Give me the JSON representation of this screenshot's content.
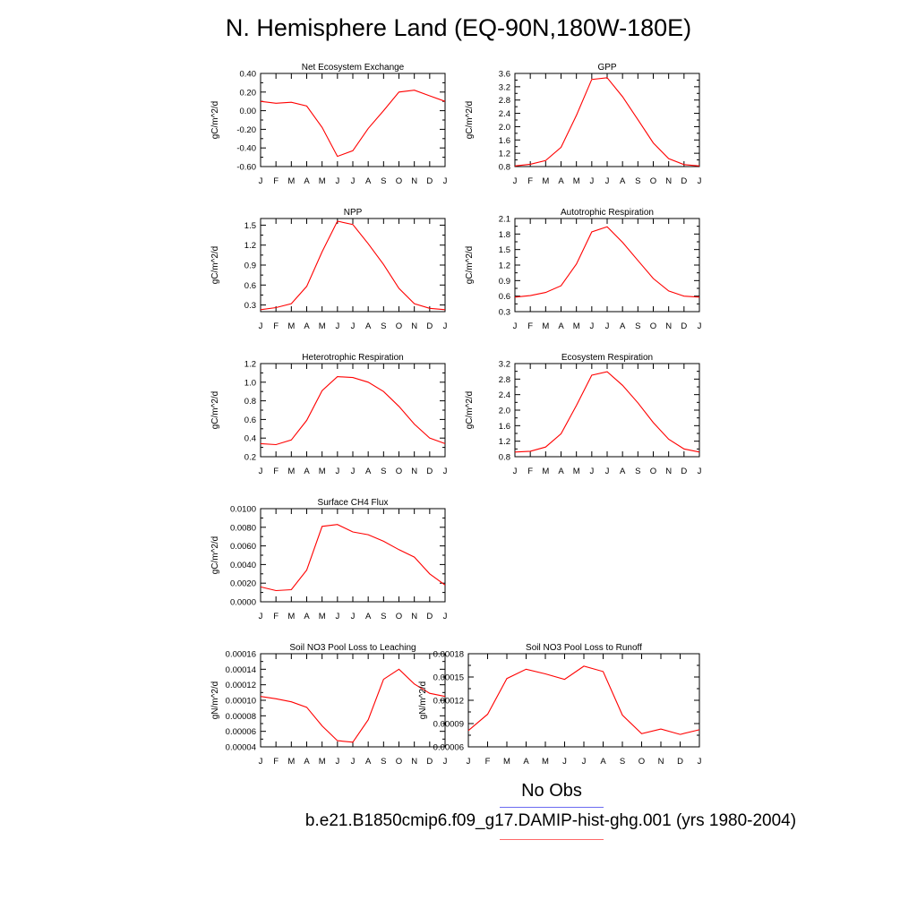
{
  "title": "N. Hemisphere Land (EQ-90N,180W-180E)",
  "legend": {
    "obs_label": "No Obs",
    "obs_color": "#6a6af0",
    "case_label": "b.e21.B1850cmip6.f09_g17.DAMIP-hist-ghg.001 (yrs 1980-2004)",
    "case_color": "#ff0000"
  },
  "chart_data": [
    {
      "type": "line",
      "title": "Net Ecosystem Exchange",
      "ylabel": "gC/m^2/d",
      "categories": [
        "J",
        "F",
        "M",
        "A",
        "M",
        "J",
        "J",
        "A",
        "S",
        "O",
        "N",
        "D",
        "J"
      ],
      "yticks": [
        "0.40",
        "0.20",
        "0.00",
        "-0.20",
        "-0.40",
        "-0.60"
      ],
      "ylim": [
        -0.6,
        0.4
      ],
      "series": [
        {
          "values": [
            0.1,
            0.08,
            0.09,
            0.05,
            -0.18,
            -0.49,
            -0.43,
            -0.19,
            0.0,
            0.2,
            0.22,
            0.16,
            0.1
          ]
        }
      ]
    },
    {
      "type": "line",
      "title": "GPP",
      "ylabel": "gC/m^2/d",
      "categories": [
        "J",
        "F",
        "M",
        "A",
        "M",
        "J",
        "J",
        "A",
        "S",
        "O",
        "N",
        "D",
        "J"
      ],
      "yticks": [
        "3.6",
        "3.2",
        "2.8",
        "2.4",
        "2.0",
        "1.6",
        "1.2",
        "0.8"
      ],
      "ylim": [
        0.8,
        3.6
      ],
      "series": [
        {
          "values": [
            0.82,
            0.87,
            0.98,
            1.38,
            2.34,
            3.42,
            3.47,
            2.9,
            2.21,
            1.51,
            1.04,
            0.86,
            0.82
          ]
        }
      ]
    },
    {
      "type": "line",
      "title": "NPP",
      "ylabel": "gC/m^2/d",
      "categories": [
        "J",
        "F",
        "M",
        "A",
        "M",
        "J",
        "J",
        "A",
        "S",
        "O",
        "N",
        "D",
        "J"
      ],
      "yticks": [
        "1.5",
        "1.2",
        "0.9",
        "0.6",
        "0.3"
      ],
      "ylim": [
        0.2,
        1.6
      ],
      "series": [
        {
          "values": [
            0.23,
            0.26,
            0.32,
            0.58,
            1.1,
            1.56,
            1.51,
            1.22,
            0.91,
            0.55,
            0.32,
            0.25,
            0.23
          ]
        }
      ]
    },
    {
      "type": "line",
      "title": "Autotrophic Respiration",
      "ylabel": "gC/m^2/d",
      "categories": [
        "J",
        "F",
        "M",
        "A",
        "M",
        "J",
        "J",
        "A",
        "S",
        "O",
        "N",
        "D",
        "J"
      ],
      "yticks": [
        "2.1",
        "1.8",
        "1.5",
        "1.2",
        "0.9",
        "0.6",
        "0.3"
      ],
      "ylim": [
        0.3,
        2.1
      ],
      "series": [
        {
          "values": [
            0.58,
            0.61,
            0.67,
            0.8,
            1.22,
            1.84,
            1.94,
            1.64,
            1.29,
            0.94,
            0.7,
            0.6,
            0.58
          ]
        }
      ]
    },
    {
      "type": "line",
      "title": "Heterotrophic Respiration",
      "ylabel": "gC/m^2/d",
      "categories": [
        "J",
        "F",
        "M",
        "A",
        "M",
        "J",
        "J",
        "A",
        "S",
        "O",
        "N",
        "D",
        "J"
      ],
      "yticks": [
        "1.2",
        "1.0",
        "0.8",
        "0.6",
        "0.4",
        "0.2"
      ],
      "ylim": [
        0.2,
        1.2
      ],
      "series": [
        {
          "values": [
            0.34,
            0.33,
            0.38,
            0.59,
            0.91,
            1.06,
            1.05,
            1.0,
            0.9,
            0.74,
            0.55,
            0.4,
            0.34
          ]
        }
      ]
    },
    {
      "type": "line",
      "title": "Ecosystem Respiration",
      "ylabel": "gC/m^2/d",
      "categories": [
        "J",
        "F",
        "M",
        "A",
        "M",
        "J",
        "J",
        "A",
        "S",
        "O",
        "N",
        "D",
        "J"
      ],
      "yticks": [
        "3.2",
        "2.8",
        "2.4",
        "2.0",
        "1.6",
        "1.2",
        "0.8"
      ],
      "ylim": [
        0.8,
        3.2
      ],
      "series": [
        {
          "values": [
            0.92,
            0.94,
            1.05,
            1.39,
            2.12,
            2.9,
            2.99,
            2.64,
            2.19,
            1.68,
            1.25,
            1.0,
            0.92
          ]
        }
      ]
    },
    {
      "type": "line",
      "title": "Surface CH4 Flux",
      "ylabel": "gC/m^2/d",
      "categories": [
        "J",
        "F",
        "M",
        "A",
        "M",
        "J",
        "J",
        "A",
        "S",
        "O",
        "N",
        "D",
        "J"
      ],
      "yticks": [
        "0.0100",
        "0.0080",
        "0.0060",
        "0.0040",
        "0.0020",
        "0.0000"
      ],
      "ylim": [
        0.0,
        0.01
      ],
      "series": [
        {
          "values": [
            0.0016,
            0.0012,
            0.0013,
            0.0034,
            0.0081,
            0.0083,
            0.0075,
            0.0072,
            0.0065,
            0.0056,
            0.0048,
            0.003,
            0.0018
          ]
        }
      ]
    },
    {
      "type": "line",
      "title": "Soil NO3 Pool Loss to Leaching",
      "ylabel": "gN/m^2/d",
      "categories": [
        "J",
        "F",
        "M",
        "A",
        "M",
        "J",
        "J",
        "A",
        "S",
        "O",
        "N",
        "D",
        "J"
      ],
      "yticks": [
        "0.00016",
        "0.00014",
        "0.00012",
        "0.00010",
        "0.00008",
        "0.00006",
        "0.00004"
      ],
      "ylim": [
        4e-05,
        0.00016
      ],
      "series": [
        {
          "values": [
            0.000105,
            0.000102,
            9.8e-05,
            9.1e-05,
            6.7e-05,
            4.8e-05,
            4.6e-05,
            7.5e-05,
            0.000127,
            0.00014,
            0.000121,
            0.000109,
            0.000105
          ]
        }
      ]
    },
    {
      "type": "line",
      "title": "Soil NO3 Pool Loss to Runoff",
      "ylabel": "gN/m^2/d",
      "categories": [
        "J",
        "F",
        "M",
        "A",
        "M",
        "J",
        "J",
        "A",
        "S",
        "O",
        "N",
        "D",
        "J"
      ],
      "yticks": [
        "0.00018",
        "0.00015",
        "0.00012",
        "0.00009",
        "0.00006"
      ],
      "ylim": [
        6e-05,
        0.00018
      ],
      "series": [
        {
          "values": [
            8.1e-05,
            0.000102,
            0.000148,
            0.00016,
            0.000154,
            0.000147,
            0.000164,
            0.000157,
            0.000101,
            7.7e-05,
            8.3e-05,
            7.6e-05,
            8.2e-05
          ]
        }
      ]
    }
  ]
}
